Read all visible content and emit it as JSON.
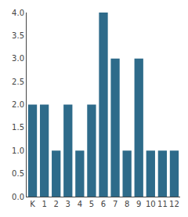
{
  "chart_data": {
    "type": "bar",
    "categories": [
      "K",
      "1",
      "2",
      "3",
      "4",
      "5",
      "6",
      "7",
      "8",
      "9",
      "10",
      "11",
      "12"
    ],
    "values": [
      2,
      2,
      1,
      2,
      1,
      2,
      4,
      3,
      1,
      3,
      1,
      1,
      1
    ],
    "color": "#2e6b8a",
    "ylim": [
      0,
      4
    ],
    "yticks": [
      {
        "value": 0,
        "label": "0.0"
      },
      0.5,
      {
        "value": 1,
        "label": "1.0"
      },
      1.5,
      {
        "value": 2,
        "label": "2.0"
      },
      2.5,
      {
        "value": 3,
        "label": "3.0"
      },
      3.5,
      {
        "value": 4,
        "label": "4.0"
      }
    ],
    "grid": false
  }
}
